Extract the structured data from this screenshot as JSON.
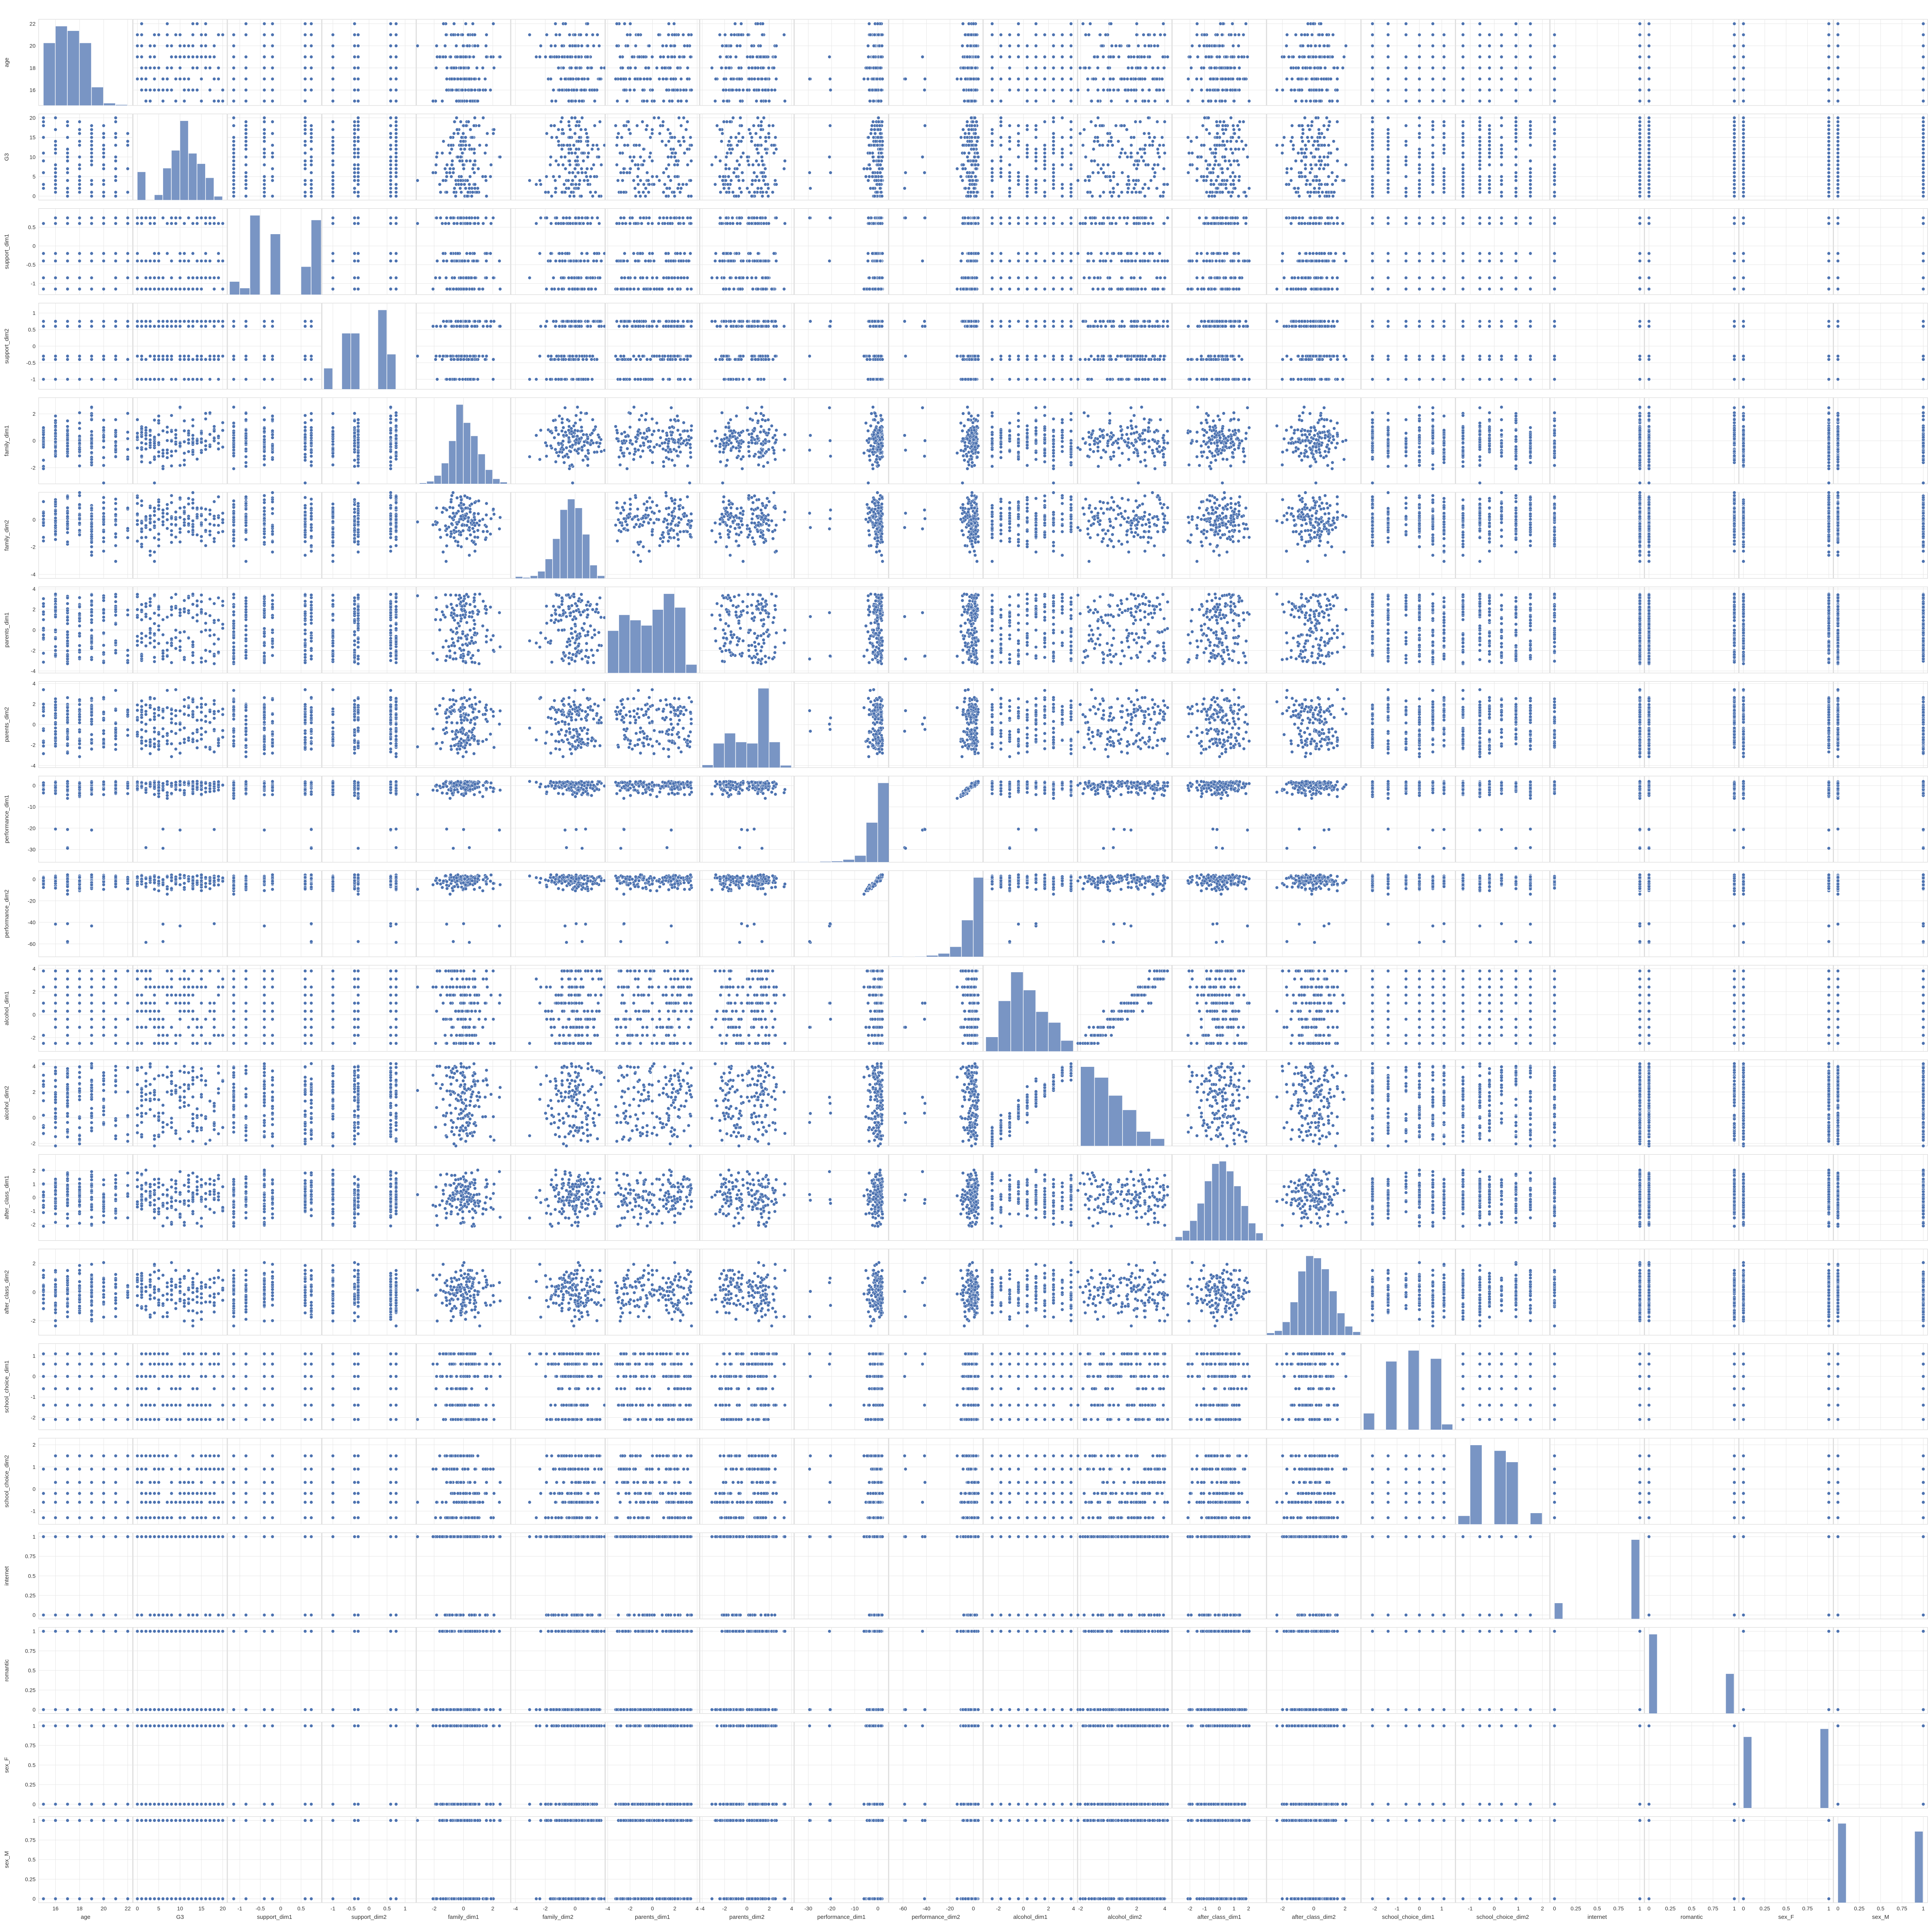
{
  "chart_data": {
    "type": "scatter",
    "variables": [
      "age",
      "G3",
      "support_dim1",
      "support_dim2",
      "family_dim1",
      "family_dim2",
      "parents_dim1",
      "parents_dim2",
      "performance_dim1",
      "performance_dim2",
      "alcohol_dim1",
      "alcohol_dim2",
      "after_class_dim1",
      "after_class_dim2",
      "school_choice_dim1",
      "school_choice_dim2",
      "internet",
      "romantic",
      "sex_F",
      "sex_M"
    ],
    "colors": {
      "points": "#4C72B0",
      "bars": "#4C72B0",
      "grid": "#E5E5E5",
      "frame": "#CFCFCF",
      "text": "#333333"
    },
    "grid": true,
    "diagonal": "histogram",
    "offdiagonal": "scatter",
    "axes": {
      "age": {
        "range": [
          14.6,
          22.4
        ],
        "ticks": [
          16,
          18,
          20,
          22
        ],
        "kind": "int",
        "min": 15,
        "max": 22
      },
      "G3": {
        "range": [
          -1,
          21
        ],
        "ticks": [
          0,
          5,
          10,
          15,
          20
        ],
        "kind": "int",
        "min": 0,
        "max": 20
      },
      "support_dim1": {
        "range": [
          -1.3,
          1.0
        ],
        "ticks": [
          -1.0,
          -0.5,
          0.0,
          0.5
        ],
        "kind": "levels",
        "levels": [
          -1.15,
          -0.85,
          -0.4,
          -0.2,
          0.6,
          0.75
        ]
      },
      "support_dim2": {
        "range": [
          -1.3,
          1.3
        ],
        "ticks": [
          -1.0,
          -0.5,
          0.0,
          0.5,
          1.0
        ],
        "kind": "levels",
        "levels": [
          -1.0,
          -0.4,
          -0.3,
          0.6,
          0.75
        ]
      },
      "family_dim1": {
        "range": [
          -3.2,
          3.2
        ],
        "ticks": [
          -2,
          0,
          2
        ],
        "kind": "normal",
        "mean": 0,
        "sd": 0.9
      },
      "family_dim2": {
        "range": [
          -4.3,
          2.0
        ],
        "ticks": [
          -4,
          -2,
          0
        ],
        "kind": "normal",
        "mean": 0,
        "sd": 0.9
      },
      "parents_dim1": {
        "range": [
          -4.2,
          4.2
        ],
        "ticks": [
          -4,
          -2,
          0,
          2,
          4
        ],
        "kind": "uniform",
        "min": -3.3,
        "max": 3.5
      },
      "parents_dim2": {
        "range": [
          -4.2,
          4.2
        ],
        "ticks": [
          -4,
          -2,
          0,
          2,
          4
        ],
        "kind": "bimodal",
        "mean1": -1.6,
        "mean2": 1.4,
        "sd": 0.8
      },
      "performance_dim1": {
        "range": [
          -36,
          4.5
        ],
        "ticks": [
          -30,
          -20,
          -10,
          0
        ],
        "kind": "skew",
        "mode": 2,
        "spread": 3,
        "tail": -33
      },
      "performance_dim2": {
        "range": [
          -72,
          8
        ],
        "ticks": [
          -60,
          -40,
          -20,
          0
        ],
        "kind": "skew",
        "mode": 2,
        "spread": 6,
        "tail": -66
      },
      "alcohol_dim1": {
        "range": [
          -3.2,
          4.3
        ],
        "ticks": [
          -2,
          0,
          2,
          4
        ],
        "kind": "levels",
        "levels": [
          -2.5,
          -1.8,
          -1.1,
          -0.4,
          0.3,
          1.0,
          1.7,
          2.4,
          3.1,
          3.8
        ]
      },
      "alcohol_dim2": {
        "range": [
          -2.2,
          4.5
        ],
        "ticks": [
          -2,
          0,
          2,
          4
        ],
        "kind": "levels",
        "levels": [
          -1.6,
          -1.0,
          -0.4,
          0.2,
          0.8,
          1.4,
          2.0,
          2.6,
          3.2
        ]
      },
      "after_class_dim1": {
        "range": [
          -3.2,
          3.2
        ],
        "ticks": [
          -2,
          -1,
          0,
          1,
          2
        ],
        "kind": "normal",
        "mean": 0,
        "sd": 0.95
      },
      "after_class_dim2": {
        "range": [
          -3.0,
          3.0
        ],
        "ticks": [
          -2,
          0,
          2
        ],
        "kind": "normal",
        "mean": 0,
        "sd": 0.9
      },
      "school_choice_dim1": {
        "range": [
          -2.6,
          1.6
        ],
        "ticks": [
          -2,
          -1,
          0,
          1
        ],
        "kind": "levels",
        "levels": [
          -2.1,
          -1.4,
          -0.6,
          0.0,
          0.6,
          1.1
        ]
      },
      "school_choice_dim2": {
        "range": [
          -1.6,
          2.3
        ],
        "ticks": [
          -1,
          0,
          1,
          2
        ],
        "kind": "levels",
        "levels": [
          -1.3,
          -0.6,
          -0.2,
          0.3,
          0.9,
          1.5
        ]
      },
      "internet": {
        "range": [
          -0.05,
          1.05
        ],
        "ticks": [
          0.0,
          0.25,
          0.5,
          0.75,
          1.0
        ],
        "kind": "binary",
        "p": 0.83
      },
      "romantic": {
        "range": [
          -0.05,
          1.05
        ],
        "ticks": [
          0.0,
          0.25,
          0.5,
          0.75,
          1.0
        ],
        "kind": "binary",
        "p": 0.33
      },
      "sex_F": {
        "range": [
          -0.05,
          1.05
        ],
        "ticks": [
          0.0,
          0.25,
          0.5,
          0.75,
          1.0
        ],
        "kind": "binary",
        "p": 0.52
      },
      "sex_M": {
        "range": [
          -0.05,
          1.05
        ],
        "ticks": [
          0.0,
          0.25,
          0.5,
          0.75,
          1.0
        ],
        "kind": "binary",
        "p": 0.48
      }
    },
    "histograms": {
      "age": {
        "edges": [
          15,
          16,
          17,
          18,
          19,
          20,
          21,
          22
        ],
        "counts": [
          82,
          104,
          98,
          82,
          24,
          3,
          1
        ]
      },
      "G3": {
        "edges": [
          0,
          2,
          4,
          6,
          8,
          10,
          12,
          14,
          16,
          18,
          20
        ],
        "counts": [
          38,
          0,
          7,
          43,
          67,
          107,
          63,
          49,
          30,
          5
        ]
      },
      "support_dim1": {
        "edges": [
          -1.25,
          -1.0,
          -0.75,
          -0.5,
          -0.25,
          0.0,
          0.25,
          0.5,
          0.75,
          1.0
        ],
        "counts": [
          28,
          14,
          170,
          0,
          130,
          0,
          0,
          60,
          160
        ]
      },
      "support_dim2": {
        "edges": [
          -1.25,
          -1.0,
          -0.75,
          -0.5,
          -0.25,
          0.0,
          0.25,
          0.5,
          0.75,
          1.0
        ],
        "counts": [
          45,
          0,
          120,
          120,
          0,
          0,
          170,
          75,
          0
        ]
      },
      "family_dim1": {
        "edges": [
          -3,
          -2.5,
          -2,
          -1.5,
          -1,
          -0.5,
          0,
          0.5,
          1,
          1.5,
          2,
          2.5,
          3
        ],
        "counts": [
          1,
          3,
          10,
          25,
          52,
          96,
          74,
          58,
          36,
          17,
          6,
          2
        ]
      },
      "family_dim2": {
        "edges": [
          -4,
          -3.5,
          -3,
          -2.5,
          -2,
          -1.5,
          -1,
          -0.5,
          0,
          0.5,
          1,
          1.5,
          2
        ],
        "counts": [
          2,
          1,
          3,
          8,
          22,
          45,
          78,
          90,
          80,
          50,
          15,
          3
        ]
      },
      "parents_dim1": {
        "edges": [
          -4,
          -3,
          -2,
          -1,
          0,
          1,
          2,
          3,
          4
        ],
        "counts": [
          40,
          55,
          50,
          45,
          60,
          75,
          62,
          8
        ]
      },
      "parents_dim2": {
        "edges": [
          -4,
          -3,
          -2,
          -1,
          0,
          1,
          2,
          3,
          4
        ],
        "counts": [
          6,
          55,
          78,
          58,
          55,
          180,
          58,
          5
        ]
      },
      "performance_dim1": {
        "edges": [
          -35,
          -30,
          -25,
          -20,
          -15,
          -10,
          -5,
          0,
          5
        ],
        "counts": [
          1,
          0,
          2,
          3,
          8,
          20,
          120,
          240
        ]
      },
      "performance_dim2": {
        "edges": [
          -70,
          -60,
          -50,
          -40,
          -30,
          -20,
          -10,
          0,
          10
        ],
        "counts": [
          1,
          0,
          1,
          4,
          10,
          30,
          110,
          238
        ]
      },
      "alcohol_dim1": {
        "edges": [
          -3,
          -2,
          -1,
          0,
          1,
          2,
          3,
          4
        ],
        "counts": [
          20,
          70,
          110,
          85,
          55,
          40,
          15
        ]
      },
      "alcohol_dim2": {
        "edges": [
          -2,
          -1,
          0,
          1,
          2,
          3,
          4
        ],
        "counts": [
          110,
          95,
          70,
          50,
          20,
          10
        ]
      },
      "after_class_dim1": {
        "edges": [
          -3,
          -2.5,
          -2,
          -1.5,
          -1,
          -0.5,
          0,
          0.5,
          1,
          1.5,
          2,
          2.5,
          3
        ],
        "counts": [
          3,
          8,
          16,
          30,
          48,
          62,
          64,
          56,
          44,
          28,
          14,
          6
        ]
      },
      "after_class_dim2": {
        "edges": [
          -3,
          -2.5,
          -2,
          -1.5,
          -1,
          -0.5,
          0,
          0.5,
          1,
          1.5,
          2,
          2.5,
          3
        ],
        "counts": [
          2,
          4,
          12,
          30,
          58,
          72,
          70,
          60,
          40,
          20,
          8,
          3
        ]
      },
      "school_choice_dim1": {
        "edges": [
          -2.5,
          -2.0,
          -1.5,
          -1.0,
          -0.5,
          0.0,
          0.5,
          1.0,
          1.5
        ],
        "counts": [
          30,
          0,
          125,
          0,
          145,
          0,
          130,
          10
        ]
      },
      "school_choice_dim2": {
        "edges": [
          -1.5,
          -1.0,
          -0.5,
          0.0,
          0.5,
          1.0,
          1.5,
          2.0
        ],
        "counts": [
          15,
          140,
          0,
          130,
          110,
          0,
          20
        ]
      },
      "internet": {
        "edges": [
          0,
          0.1,
          0.2,
          0.3,
          0.4,
          0.5,
          0.6,
          0.7,
          0.8,
          0.9,
          1.0
        ],
        "counts": [
          66,
          0,
          0,
          0,
          0,
          0,
          0,
          0,
          0,
          329
        ]
      },
      "romantic": {
        "edges": [
          0,
          0.1,
          0.2,
          0.3,
          0.4,
          0.5,
          0.6,
          0.7,
          0.8,
          0.9,
          1.0
        ],
        "counts": [
          263,
          0,
          0,
          0,
          0,
          0,
          0,
          0,
          0,
          132
        ]
      },
      "sex_F": {
        "edges": [
          0,
          0.1,
          0.2,
          0.3,
          0.4,
          0.5,
          0.6,
          0.7,
          0.8,
          0.9,
          1.0
        ],
        "counts": [
          187,
          0,
          0,
          0,
          0,
          0,
          0,
          0,
          0,
          208
        ]
      },
      "sex_M": {
        "edges": [
          0,
          0.1,
          0.2,
          0.3,
          0.4,
          0.5,
          0.6,
          0.7,
          0.8,
          0.9,
          1.0
        ],
        "counts": [
          208,
          0,
          0,
          0,
          0,
          0,
          0,
          0,
          0,
          187
        ]
      }
    },
    "correlations": [
      {
        "x": "performance_dim1",
        "y": "performance_dim2",
        "r": 0.95
      },
      {
        "x": "alcohol_dim1",
        "y": "alcohol_dim2",
        "r": 0.7
      }
    ]
  }
}
